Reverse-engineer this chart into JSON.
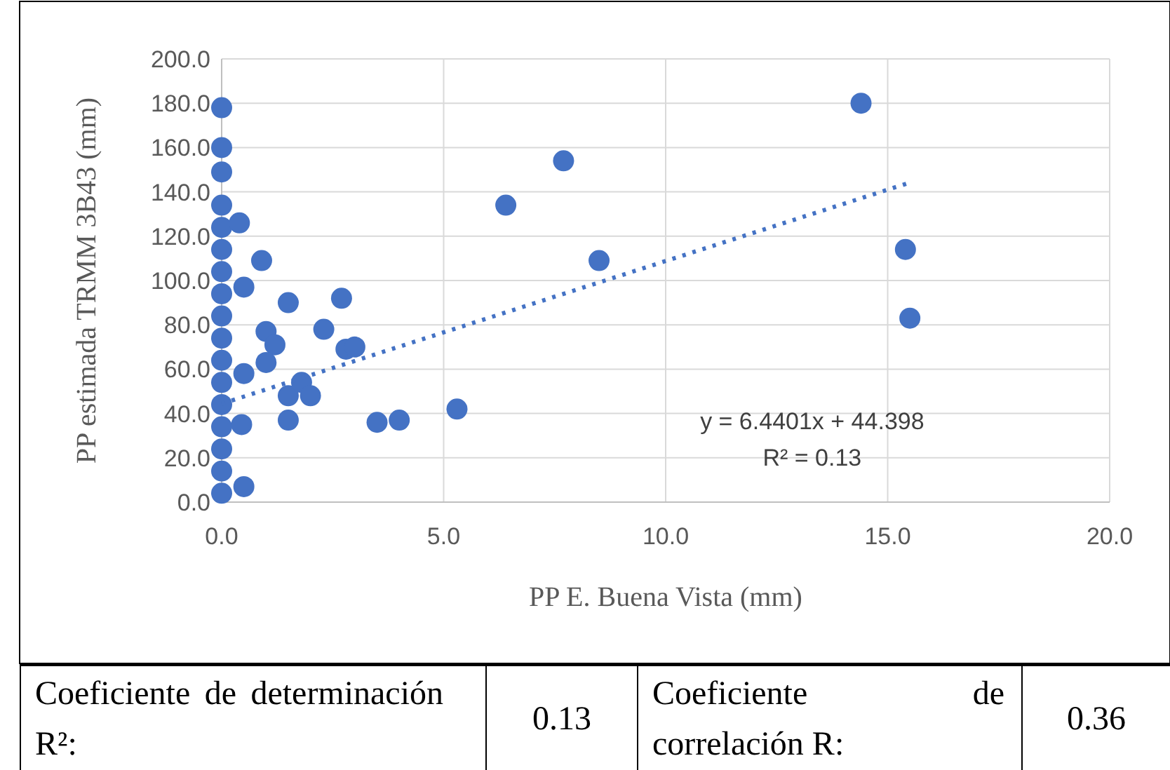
{
  "chart_data": {
    "type": "scatter",
    "xlabel": "PP E. Buena Vista (mm)",
    "ylabel": "PP estimada TRMM 3B43 (mm)",
    "xlim": [
      0,
      20
    ],
    "xticks": [
      {
        "value": 0,
        "label": "0.0"
      },
      {
        "value": 5,
        "label": "5.0"
      },
      {
        "value": 10,
        "label": "10.0"
      },
      {
        "value": 15,
        "label": "15.0"
      },
      {
        "value": 20,
        "label": "20.0"
      }
    ],
    "ylim": [
      0,
      200
    ],
    "yticks": [
      {
        "value": 0,
        "label": "0.0"
      },
      {
        "value": 20,
        "label": "20.0"
      },
      {
        "value": 40,
        "label": "40.0"
      },
      {
        "value": 60,
        "label": "60.0"
      },
      {
        "value": 80,
        "label": "80.0"
      },
      {
        "value": 100,
        "label": "100.0"
      },
      {
        "value": 120,
        "label": "120.0"
      },
      {
        "value": 140,
        "label": "140.0"
      },
      {
        "value": 160,
        "label": "160.0"
      },
      {
        "value": 180,
        "label": "180.0"
      },
      {
        "value": 200,
        "label": "200.0"
      }
    ],
    "grid": true,
    "legend": false,
    "series": [
      {
        "type": "scatter",
        "color": "#4472c4",
        "marker": "circle",
        "x": [
          0,
          0,
          0,
          0,
          0,
          0,
          0,
          0,
          0,
          0,
          0,
          0,
          0,
          0,
          0,
          0,
          0,
          14.4,
          7.7,
          6.4,
          8.5,
          15.4,
          15.5,
          5.3,
          4.0,
          3.5,
          2.7,
          2.3,
          2.8,
          3.0,
          1.5,
          1.0,
          1.2,
          1.0,
          1.5,
          1.8,
          2.0,
          1.5,
          0.9,
          0.4,
          0.5,
          0.5,
          0.45,
          0.5
        ],
        "values": [
          178,
          160,
          149,
          134,
          124,
          114,
          104,
          94,
          84,
          74,
          64,
          54,
          44,
          34,
          24,
          14,
          4,
          180,
          154,
          134,
          109,
          114,
          83,
          42,
          37,
          36,
          92,
          78,
          69,
          70,
          90,
          77,
          71,
          63,
          48,
          54,
          48,
          37,
          109,
          126,
          97,
          58,
          35,
          7
        ]
      },
      {
        "type": "line",
        "color": "#4472c4",
        "marker": "none",
        "line_style": "dotted",
        "x": [
          0,
          15.5
        ],
        "values": [
          44.4,
          144.2
        ]
      }
    ],
    "annotations": [
      "y = 6.4401x + 44.398",
      "R² = 0.13",
      "Coeficiente de determinación R²:",
      "0.13",
      "Coeficiente de correlación R:",
      "0.36"
    ]
  }
}
